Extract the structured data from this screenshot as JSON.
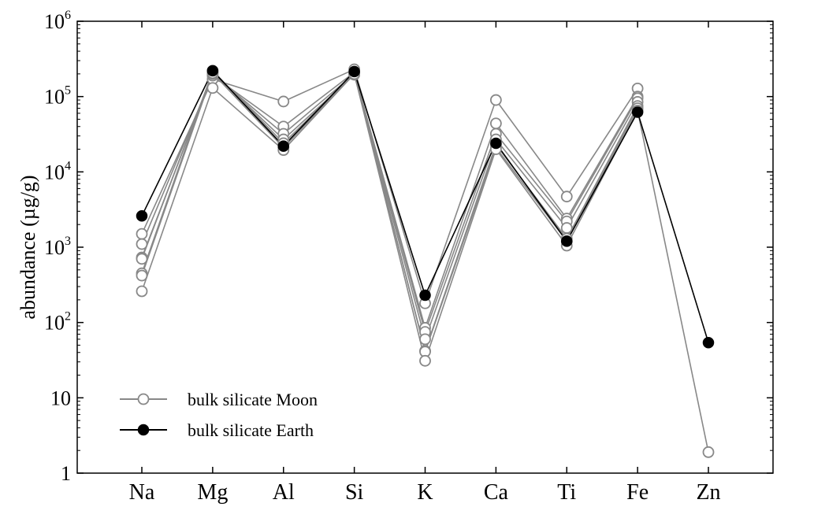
{
  "chart_data": {
    "type": "line",
    "ylabel": "abundance (µg/g)",
    "yscale": "log",
    "ylim": [
      1,
      1000000
    ],
    "grid": false,
    "legend_position": "lower-left",
    "categories": [
      "Na",
      "Mg",
      "Al",
      "Si",
      "K",
      "Ca",
      "Ti",
      "Fe",
      "Zn"
    ],
    "y_ticks": [
      {
        "base": "1",
        "exp": ""
      },
      {
        "base": "10",
        "exp": ""
      },
      {
        "base": "10",
        "exp": "2"
      },
      {
        "base": "10",
        "exp": "3"
      },
      {
        "base": "10",
        "exp": "4"
      },
      {
        "base": "10",
        "exp": "5"
      },
      {
        "base": "10",
        "exp": "6"
      }
    ],
    "colors": {
      "moon": "#888888",
      "earth": "#000000"
    },
    "moon_models": [
      [
        1500,
        170000,
        86000,
        230000,
        180,
        90000,
        4700,
        128000,
        null
      ],
      [
        1100,
        190000,
        40000,
        210000,
        85,
        44000,
        2400,
        100000,
        null
      ],
      [
        730,
        200000,
        32000,
        200000,
        75,
        32000,
        2200,
        95000,
        null
      ],
      [
        700,
        210000,
        27000,
        195000,
        60,
        27000,
        1800,
        85000,
        null
      ],
      [
        450,
        220000,
        24000,
        200000,
        42,
        23000,
        1300,
        75000,
        null
      ],
      [
        420,
        205000,
        21000,
        205000,
        41,
        21000,
        1200,
        70000,
        null
      ],
      [
        260,
        130000,
        19500,
        200000,
        31,
        20000,
        1050,
        65000,
        1.9
      ]
    ],
    "series": [
      {
        "name": "bulk silicate Moon",
        "marker": "open-circle",
        "color": "#888888"
      },
      {
        "name": "bulk silicate Earth",
        "marker": "filled-circle",
        "color": "#000000",
        "values": [
          2600,
          220000,
          22000,
          215000,
          230,
          24000,
          1200,
          62000,
          54
        ]
      }
    ]
  }
}
